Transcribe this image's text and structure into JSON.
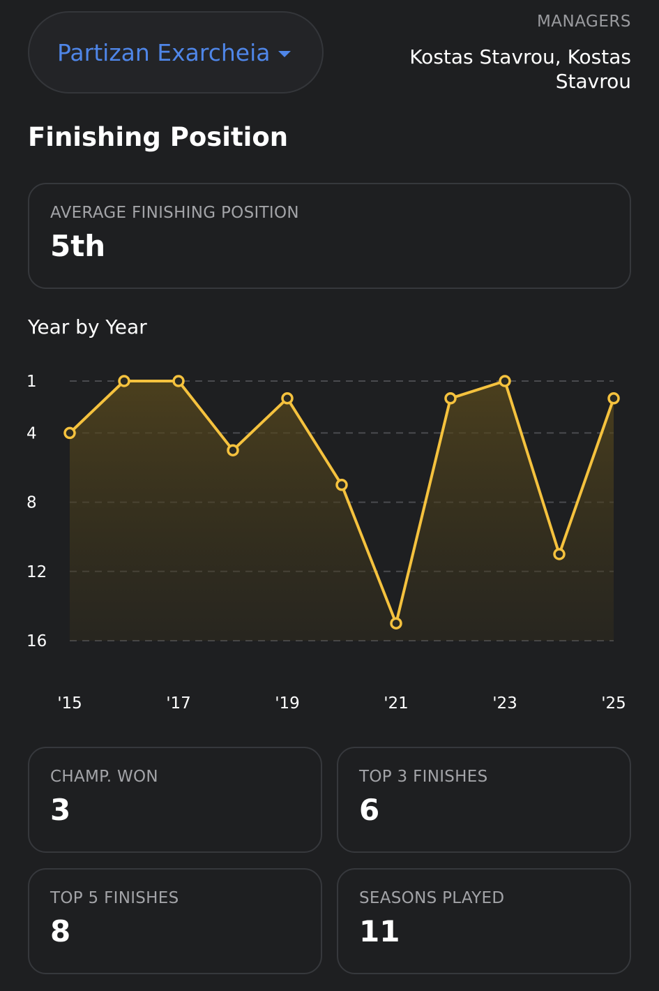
{
  "header": {
    "team_name": "Partizan Exarcheia",
    "managers_label": "MANAGERS",
    "managers_names": "Kostas Stavrou, Kostas Stavrou"
  },
  "section": {
    "title": "Finishing Position",
    "average_label": "AVERAGE FINISHING POSITION",
    "average_value": "5th",
    "year_by_year_title": "Year by Year"
  },
  "chart_data": {
    "type": "line",
    "x": [
      "'15",
      "'16",
      "'17",
      "'18",
      "'19",
      "'20",
      "'21",
      "'22",
      "'23",
      "'24",
      "'25"
    ],
    "x_tick_labels": [
      "'15",
      "'17",
      "'19",
      "'21",
      "'23",
      "'25"
    ],
    "y_tick_labels": [
      "1",
      "4",
      "8",
      "12",
      "16"
    ],
    "y_ticks": [
      1,
      4,
      8,
      12,
      16
    ],
    "ylim": [
      1,
      16
    ],
    "y_inverted": true,
    "series": [
      {
        "values": [
          4,
          1,
          1,
          5,
          2,
          7,
          15,
          2,
          1,
          11,
          2
        ],
        "color": "#f5c23e"
      }
    ],
    "grid": true
  },
  "stats": [
    {
      "label": "CHAMP. WON",
      "value": "3"
    },
    {
      "label": "TOP 3 FINISHES",
      "value": "6"
    },
    {
      "label": "TOP 5 FINISHES",
      "value": "8"
    },
    {
      "label": "SEASONS PLAYED",
      "value": "11"
    }
  ],
  "colors": {
    "background": "#1e1f21",
    "accent_blue": "#4f86e8",
    "line_yellow": "#f5c23e",
    "card_border": "#36383c"
  },
  "icons": {
    "dropdown": "caret-down-icon"
  }
}
